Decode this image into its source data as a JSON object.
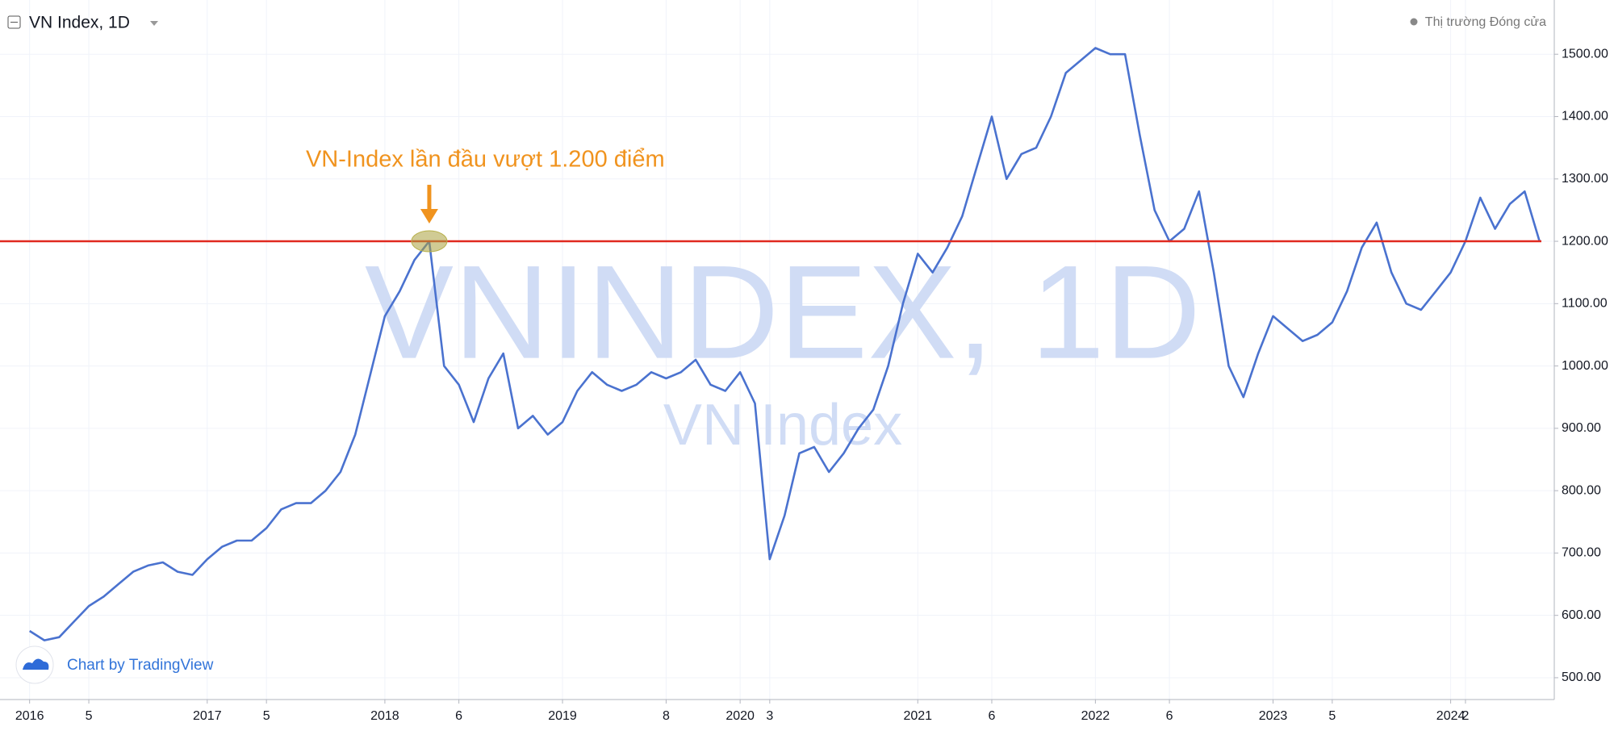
{
  "chart_data": {
    "type": "line",
    "title": "VN Index, 1D",
    "status": "Thị trường Đóng cửa",
    "watermark": "VNINDEX, 1D",
    "watermark_subtitle": "VN Index",
    "credit": "Chart by TradingView",
    "annotation": {
      "text": "VN-Index lần đầu vượt 1.200 điểm",
      "x": "2018-04",
      "y": 1200
    },
    "hline": {
      "value": 1200,
      "color": "#e0291f"
    },
    "x": [
      "2016-01",
      "2016-02",
      "2016-03",
      "2016-04",
      "2016-05",
      "2016-06",
      "2016-07",
      "2016-08",
      "2016-09",
      "2016-10",
      "2016-11",
      "2016-12",
      "2017-01",
      "2017-02",
      "2017-03",
      "2017-04",
      "2017-05",
      "2017-06",
      "2017-07",
      "2017-08",
      "2017-09",
      "2017-10",
      "2017-11",
      "2017-12",
      "2018-01",
      "2018-02",
      "2018-03",
      "2018-04",
      "2018-05",
      "2018-06",
      "2018-07",
      "2018-08",
      "2018-09",
      "2018-10",
      "2018-11",
      "2018-12",
      "2019-01",
      "2019-02",
      "2019-03",
      "2019-04",
      "2019-05",
      "2019-06",
      "2019-07",
      "2019-08",
      "2019-09",
      "2019-10",
      "2019-11",
      "2019-12",
      "2020-01",
      "2020-02",
      "2020-03",
      "2020-04",
      "2020-05",
      "2020-06",
      "2020-07",
      "2020-08",
      "2020-09",
      "2020-10",
      "2020-11",
      "2020-12",
      "2021-01",
      "2021-02",
      "2021-03",
      "2021-04",
      "2021-05",
      "2021-06",
      "2021-07",
      "2021-08",
      "2021-09",
      "2021-10",
      "2021-11",
      "2021-12",
      "2022-01",
      "2022-02",
      "2022-03",
      "2022-04",
      "2022-05",
      "2022-06",
      "2022-07",
      "2022-08",
      "2022-09",
      "2022-10",
      "2022-11",
      "2022-12",
      "2023-01",
      "2023-02",
      "2023-03",
      "2023-04",
      "2023-05",
      "2023-06",
      "2023-07",
      "2023-08",
      "2023-09",
      "2023-10",
      "2023-11",
      "2023-12",
      "2024-01",
      "2024-02",
      "2024-03",
      "2024-04",
      "2024-05",
      "2024-06",
      "2024-07"
    ],
    "series": [
      {
        "name": "VN Index",
        "color": "#4a72cf",
        "values": [
          575,
          560,
          565,
          590,
          615,
          630,
          650,
          670,
          680,
          685,
          670,
          665,
          690,
          710,
          720,
          720,
          740,
          770,
          780,
          780,
          800,
          830,
          890,
          985,
          1080,
          1120,
          1170,
          1200,
          1000,
          970,
          910,
          980,
          1020,
          900,
          920,
          890,
          910,
          960,
          990,
          970,
          960,
          970,
          990,
          980,
          990,
          1010,
          970,
          960,
          990,
          940,
          690,
          760,
          860,
          870,
          830,
          860,
          900,
          930,
          1000,
          1100,
          1180,
          1150,
          1190,
          1240,
          1320,
          1400,
          1300,
          1340,
          1350,
          1400,
          1470,
          1490,
          1510,
          1500,
          1500,
          1370,
          1250,
          1200,
          1220,
          1280,
          1150,
          1000,
          950,
          1020,
          1080,
          1060,
          1040,
          1050,
          1070,
          1120,
          1190,
          1230,
          1150,
          1100,
          1090,
          1120,
          1150,
          1200,
          1270,
          1220,
          1260,
          1280,
          1200
        ]
      }
    ],
    "xlim": [
      "2015-11",
      "2024-08"
    ],
    "xticks": [
      {
        "value": "2016-01",
        "label": "2016"
      },
      {
        "value": "2016-05",
        "label": "5"
      },
      {
        "value": "2017-01",
        "label": "2017"
      },
      {
        "value": "2017-05",
        "label": "5"
      },
      {
        "value": "2018-01",
        "label": "2018"
      },
      {
        "value": "2018-06",
        "label": "6"
      },
      {
        "value": "2019-01",
        "label": "2019"
      },
      {
        "value": "2019-08",
        "label": "8"
      },
      {
        "value": "2020-01",
        "label": "2020"
      },
      {
        "value": "2020-03",
        "label": "3"
      },
      {
        "value": "2021-01",
        "label": "2021"
      },
      {
        "value": "2021-06",
        "label": "6"
      },
      {
        "value": "2022-01",
        "label": "2022"
      },
      {
        "value": "2022-06",
        "label": "6"
      },
      {
        "value": "2023-01",
        "label": "2023"
      },
      {
        "value": "2023-05",
        "label": "5"
      },
      {
        "value": "2024-01",
        "label": "2024"
      },
      {
        "value": "2024-02",
        "label": "2"
      }
    ],
    "ylim": [
      465,
      1587
    ],
    "yticks": [
      {
        "value": 500,
        "label": "500.00"
      },
      {
        "value": 600,
        "label": "600.00"
      },
      {
        "value": 700,
        "label": "700.00"
      },
      {
        "value": 800,
        "label": "800.00"
      },
      {
        "value": 900,
        "label": "900.00"
      },
      {
        "value": 1000,
        "label": "1000.00"
      },
      {
        "value": 1100,
        "label": "1100.00"
      },
      {
        "value": 1200,
        "label": "1200.00"
      },
      {
        "value": 1300,
        "label": "1300.00"
      },
      {
        "value": 1400,
        "label": "1400.00"
      },
      {
        "value": 1500,
        "label": "1500.00"
      }
    ],
    "grid": true
  }
}
